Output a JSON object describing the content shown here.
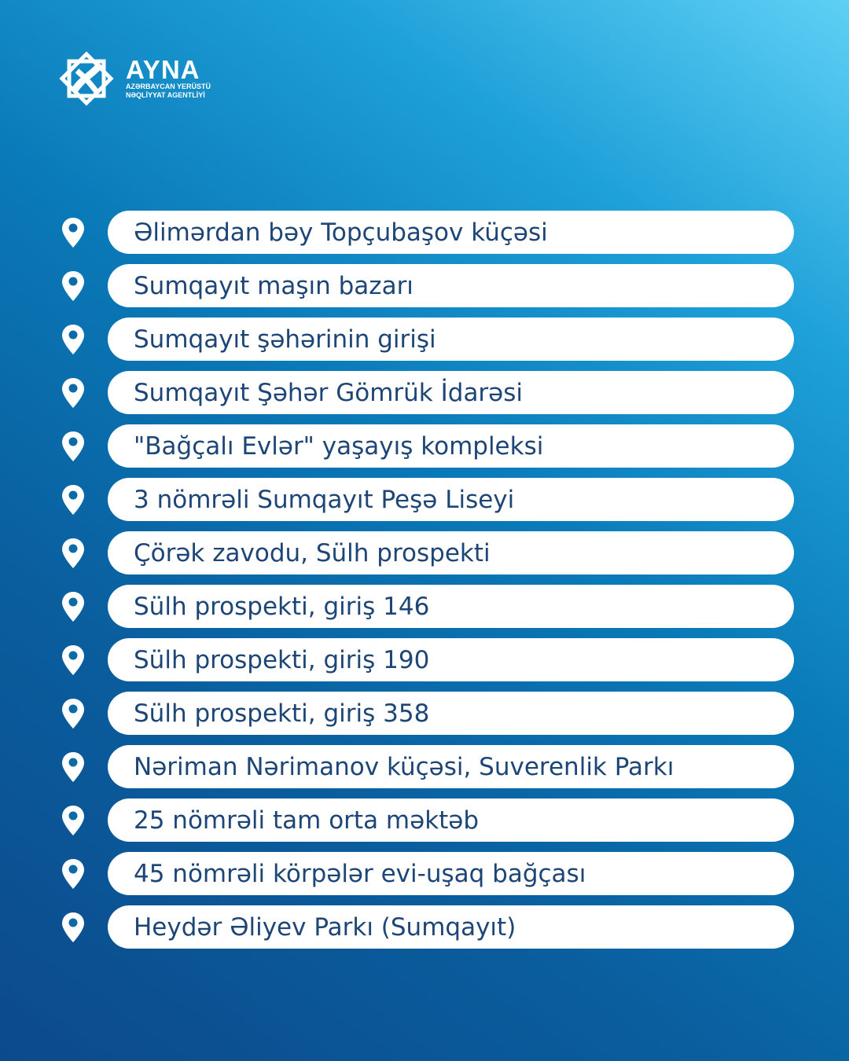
{
  "brand": {
    "name": "AYNA",
    "subtitle_line1": "AZƏRBAYCAN YERÜSTÜ",
    "subtitle_line2": "NƏQLİYYAT AGENTLİYİ"
  },
  "colors": {
    "text": "#1d4677",
    "pill": "#ffffff",
    "pin": "#ffffff"
  },
  "locations": [
    {
      "icon": "location-pin-icon",
      "label": "Əlimərdan bəy Topçubaşov küçəsi"
    },
    {
      "icon": "location-pin-icon",
      "label": "Sumqayıt maşın bazarı"
    },
    {
      "icon": "location-pin-icon",
      "label": "Sumqayıt şəhərinin girişi"
    },
    {
      "icon": "location-pin-icon",
      "label": "Sumqayıt Şəhər Gömrük İdarəsi"
    },
    {
      "icon": "location-pin-icon",
      "label": "\"Bağçalı Evlər\" yaşayış kompleksi"
    },
    {
      "icon": "location-pin-icon",
      "label": "3 nömrəli Sumqayıt Peşə Liseyi"
    },
    {
      "icon": "location-pin-icon",
      "label": "Çörək zavodu, Sülh prospekti"
    },
    {
      "icon": "location-pin-icon",
      "label": "Sülh prospekti, giriş 146"
    },
    {
      "icon": "location-pin-icon",
      "label": "Sülh prospekti, giriş 190"
    },
    {
      "icon": "location-pin-icon",
      "label": "Sülh prospekti, giriş 358"
    },
    {
      "icon": "location-pin-icon",
      "label": "Nəriman Nərimanov küçəsi, Suverenlik Parkı"
    },
    {
      "icon": "location-pin-icon",
      "label": "25 nömrəli tam orta məktəb"
    },
    {
      "icon": "location-pin-icon",
      "label": "45 nömrəli körpələr evi-uşaq bağçası"
    },
    {
      "icon": "location-pin-icon",
      "label": "Heydər Əliyev Parkı (Sumqayıt)"
    }
  ]
}
